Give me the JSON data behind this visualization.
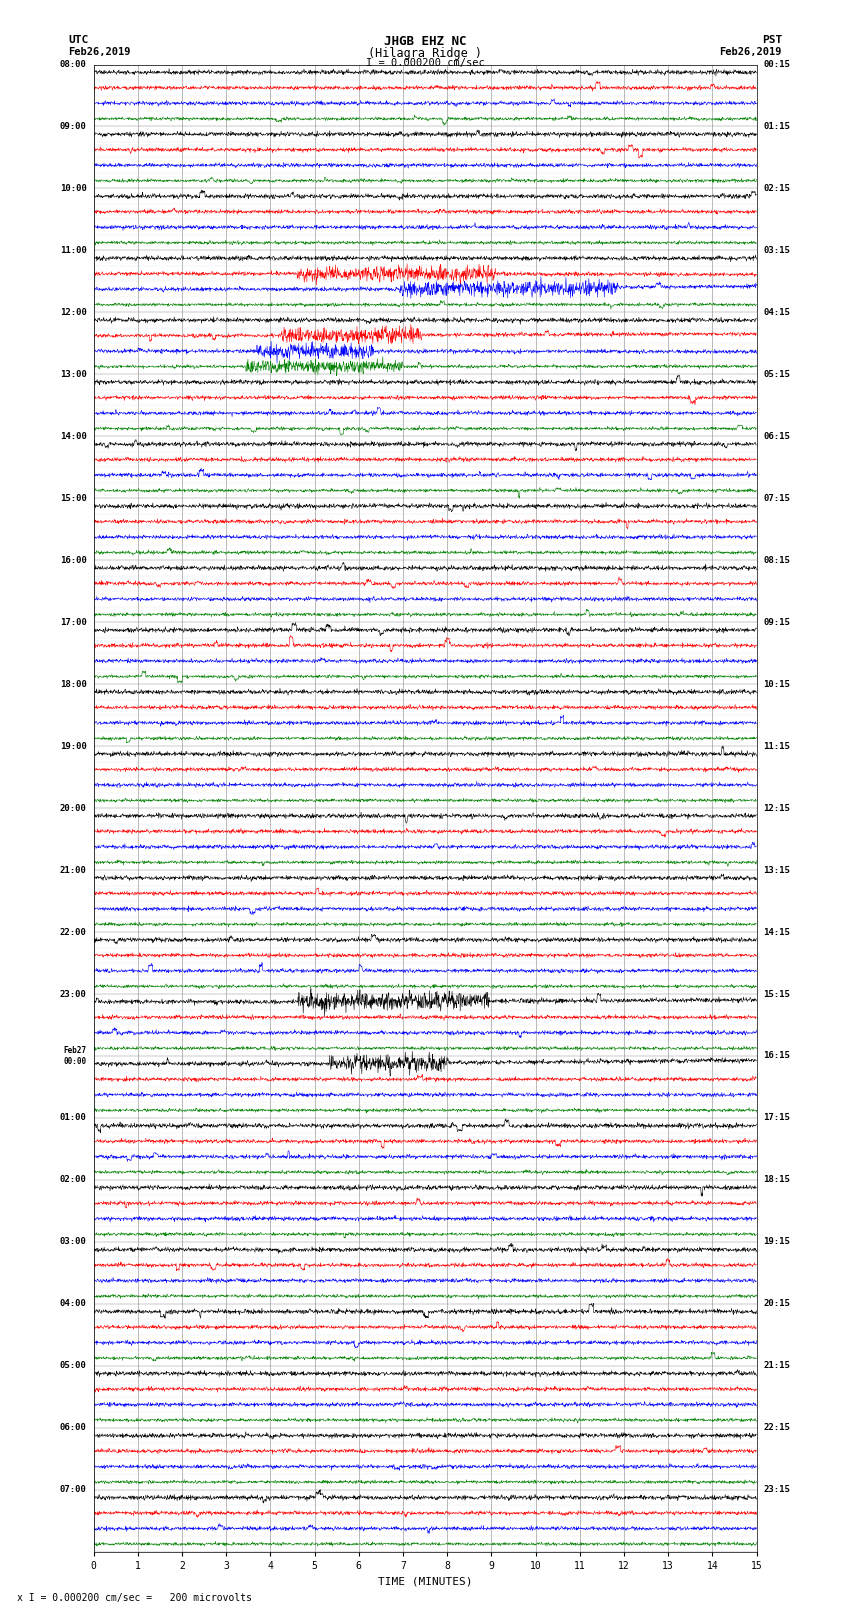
{
  "title_line1": "JHGB EHZ NC",
  "title_line2": "(Hilagra Ridge )",
  "title_line3": "I = 0.000200 cm/sec",
  "left_label_top": "UTC",
  "left_label_date": "Feb26,2019",
  "right_label_top": "PST",
  "right_label_date": "Feb26,2019",
  "xlabel": "TIME (MINUTES)",
  "bottom_note": "x I = 0.000200 cm/sec =   200 microvolts",
  "background_color": "#ffffff",
  "grid_color": "#aaaaaa",
  "colors": [
    "black",
    "red",
    "blue",
    "green"
  ],
  "utc_labels": [
    "08:00",
    "09:00",
    "10:00",
    "11:00",
    "12:00",
    "13:00",
    "14:00",
    "15:00",
    "16:00",
    "17:00",
    "18:00",
    "19:00",
    "20:00",
    "21:00",
    "22:00",
    "23:00",
    "Feb27\n00:00",
    "01:00",
    "02:00",
    "03:00",
    "04:00",
    "05:00",
    "06:00",
    "07:00"
  ],
  "pst_labels": [
    "00:15",
    "01:15",
    "02:15",
    "03:15",
    "04:15",
    "05:15",
    "06:15",
    "07:15",
    "08:15",
    "09:15",
    "10:15",
    "11:15",
    "12:15",
    "13:15",
    "14:15",
    "15:15",
    "16:15",
    "17:15",
    "18:15",
    "19:15",
    "20:15",
    "21:15",
    "22:15",
    "23:15"
  ],
  "n_row_groups": 24,
  "traces_per_group": 4,
  "time_minutes": 15,
  "xlim": [
    0,
    15
  ],
  "xticks": [
    0,
    1,
    2,
    3,
    4,
    5,
    6,
    7,
    8,
    9,
    10,
    11,
    12,
    13,
    14,
    15
  ]
}
